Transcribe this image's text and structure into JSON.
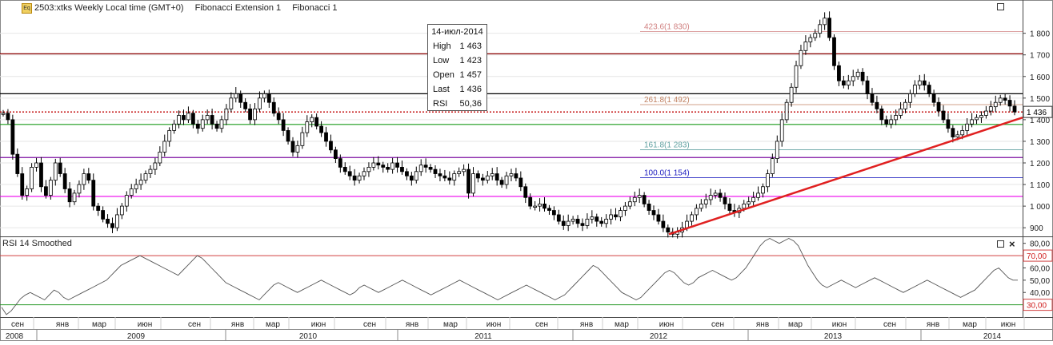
{
  "header": {
    "instrument": "2503:xtks Weekly Local time (GMT+0)",
    "indicator1": "Fibonacci Extension 1",
    "indicator2": "Fibonacci 1"
  },
  "tooltip": {
    "date": "14-июл-2014",
    "rows": [
      {
        "label": "High",
        "value": "1 463"
      },
      {
        "label": "Low",
        "value": "1 423"
      },
      {
        "label": "Open",
        "value": "1 457"
      },
      {
        "label": "Last",
        "value": "1 436"
      },
      {
        "label": "RSI",
        "value": "50,36"
      }
    ]
  },
  "rsi_panel": {
    "title": "RSI 14 Smoothed"
  },
  "colors": {
    "fib_red": "#c0392b",
    "fib_green": "#1a9a1a",
    "fib_purple": "#7b0ea0",
    "fib_magenta": "#ee00ee",
    "trend": "#e02020",
    "candle": "#000000"
  },
  "chart_data": [
    {
      "type": "candlestick",
      "title": "2503:xtks Weekly",
      "timeframe": "weekly",
      "ylim": [
        860,
        1880
      ],
      "y_ticks": [
        900,
        1000,
        1100,
        1200,
        1300,
        1400,
        1500,
        1600,
        1700,
        1800
      ],
      "y_tick_labels": [
        "900",
        "1 000",
        "1 100",
        "1 200",
        "1 300",
        "1 400",
        "1 500",
        "1 600",
        "1 700",
        "1 800"
      ],
      "last_price_label": "1 436",
      "last_price": 1436,
      "x_months_top": [
        "сен",
        "янв",
        "мар",
        "июн",
        "сен",
        "янв",
        "мар",
        "июн",
        "сен",
        "янв",
        "мар",
        "июн",
        "сен",
        "янв",
        "мар",
        "июн",
        "сен",
        "янв",
        "мар",
        "июн",
        "сен",
        "янв",
        "мар",
        "июн"
      ],
      "x_years": [
        "2008",
        "2009",
        "2010",
        "2011",
        "2012",
        "2013",
        "2014"
      ],
      "horizontal_levels": [
        {
          "value": 1705,
          "color": "#8b0000"
        },
        {
          "value": 1520,
          "color": "#000000"
        },
        {
          "value": 1436,
          "color": "#c00000",
          "style": "dotted"
        },
        {
          "value": 1378,
          "color": "#1a9a1a"
        },
        {
          "value": 1225,
          "color": "#7b0ea0"
        },
        {
          "value": 1045,
          "color": "#ee00ee"
        }
      ],
      "fib_extension_labels": [
        {
          "label": "423.6(1 830)",
          "value": 1830
        },
        {
          "label": "261.8(1 492)",
          "value": 1492
        },
        {
          "label": "161.8(1 283)",
          "value": 1283
        },
        {
          "label": "100.0(1 154)",
          "value": 1154
        }
      ],
      "trendline": [
        {
          "x": "2012-06",
          "y": 870
        },
        {
          "x": "2014-08",
          "y": 1410
        }
      ],
      "close_series": [
        1430,
        1400,
        1240,
        1150,
        1050,
        1080,
        1180,
        1200,
        1090,
        1050,
        1120,
        1200,
        1150,
        1080,
        1020,
        1060,
        1100,
        1150,
        1120,
        1000,
        980,
        940,
        920,
        900,
        960,
        1000,
        1050,
        1080,
        1100,
        1120,
        1150,
        1170,
        1200,
        1250,
        1300,
        1350,
        1380,
        1420,
        1400,
        1430,
        1380,
        1360,
        1400,
        1420,
        1380,
        1360,
        1400,
        1450,
        1500,
        1520,
        1480,
        1450,
        1400,
        1450,
        1500,
        1520,
        1480,
        1430,
        1400,
        1350,
        1300,
        1250,
        1280,
        1340,
        1390,
        1410,
        1370,
        1340,
        1300,
        1260,
        1220,
        1180,
        1160,
        1140,
        1120,
        1140,
        1160,
        1180,
        1200,
        1190,
        1180,
        1170,
        1200,
        1180,
        1160,
        1140,
        1120,
        1160,
        1190,
        1180,
        1170,
        1150,
        1140,
        1130,
        1120,
        1150,
        1160,
        1170,
        1060,
        1150,
        1130,
        1120,
        1140,
        1150,
        1120,
        1100,
        1140,
        1150,
        1130,
        1090,
        1040,
        1000,
        1000,
        1010,
        990,
        980,
        960,
        930,
        910,
        930,
        940,
        920,
        910,
        940,
        950,
        930,
        920,
        940,
        960,
        950,
        980,
        1000,
        1020,
        1040,
        1050,
        1010,
        980,
        960,
        930,
        900,
        880,
        870,
        880,
        900,
        930,
        960,
        990,
        1010,
        1030,
        1050,
        1060,
        1040,
        1010,
        980,
        970,
        990,
        1010,
        1020,
        1040,
        1060,
        1090,
        1150,
        1220,
        1300,
        1400,
        1480,
        1550,
        1650,
        1720,
        1760,
        1780,
        1800,
        1840,
        1870,
        1780,
        1650,
        1580,
        1560,
        1580,
        1600,
        1620,
        1580,
        1520,
        1480,
        1450,
        1400,
        1380,
        1400,
        1420,
        1450,
        1480,
        1520,
        1560,
        1580,
        1560,
        1520,
        1480,
        1440,
        1400,
        1360,
        1320,
        1330,
        1350,
        1380,
        1400,
        1410,
        1420,
        1440,
        1460,
        1480,
        1500,
        1490,
        1463,
        1436
      ]
    },
    {
      "type": "line",
      "title": "RSI 14 Smoothed",
      "ylim": [
        20,
        85
      ],
      "y_ticks": [
        30,
        40,
        50,
        60,
        70,
        80
      ],
      "y_tick_labels": [
        "30,00",
        "40,00",
        "50,00",
        "60,00",
        "70,00",
        "80,00"
      ],
      "levels": [
        {
          "value": 70,
          "label": "70,00"
        },
        {
          "value": 30,
          "label": "30,00"
        }
      ],
      "values": [
        28,
        22,
        25,
        30,
        35,
        38,
        40,
        38,
        36,
        34,
        38,
        42,
        40,
        36,
        34,
        36,
        38,
        40,
        42,
        44,
        46,
        48,
        50,
        54,
        58,
        62,
        64,
        66,
        68,
        70,
        68,
        66,
        64,
        62,
        60,
        58,
        56,
        54,
        58,
        62,
        66,
        70,
        68,
        64,
        60,
        56,
        52,
        48,
        46,
        44,
        42,
        40,
        38,
        36,
        34,
        38,
        42,
        46,
        48,
        46,
        44,
        42,
        40,
        42,
        44,
        46,
        48,
        50,
        48,
        46,
        44,
        42,
        40,
        38,
        40,
        44,
        46,
        44,
        42,
        40,
        42,
        44,
        46,
        48,
        50,
        48,
        46,
        44,
        42,
        40,
        38,
        40,
        42,
        44,
        46,
        48,
        50,
        48,
        46,
        44,
        42,
        40,
        38,
        36,
        34,
        36,
        38,
        40,
        42,
        44,
        46,
        44,
        42,
        40,
        38,
        36,
        34,
        36,
        38,
        42,
        46,
        50,
        54,
        58,
        62,
        60,
        56,
        52,
        48,
        44,
        40,
        38,
        36,
        34,
        36,
        40,
        44,
        48,
        52,
        56,
        58,
        56,
        52,
        48,
        46,
        48,
        52,
        54,
        56,
        58,
        56,
        54,
        52,
        50,
        52,
        56,
        60,
        66,
        72,
        78,
        82,
        84,
        82,
        80,
        82,
        84,
        82,
        78,
        70,
        62,
        56,
        50,
        46,
        44,
        46,
        48,
        50,
        48,
        46,
        44,
        46,
        48,
        50,
        52,
        50,
        48,
        46,
        44,
        42,
        40,
        42,
        44,
        46,
        48,
        50,
        48,
        46,
        44,
        42,
        40,
        38,
        36,
        38,
        40,
        42,
        46,
        50,
        54,
        58,
        60,
        56,
        52,
        50,
        50
      ]
    }
  ]
}
